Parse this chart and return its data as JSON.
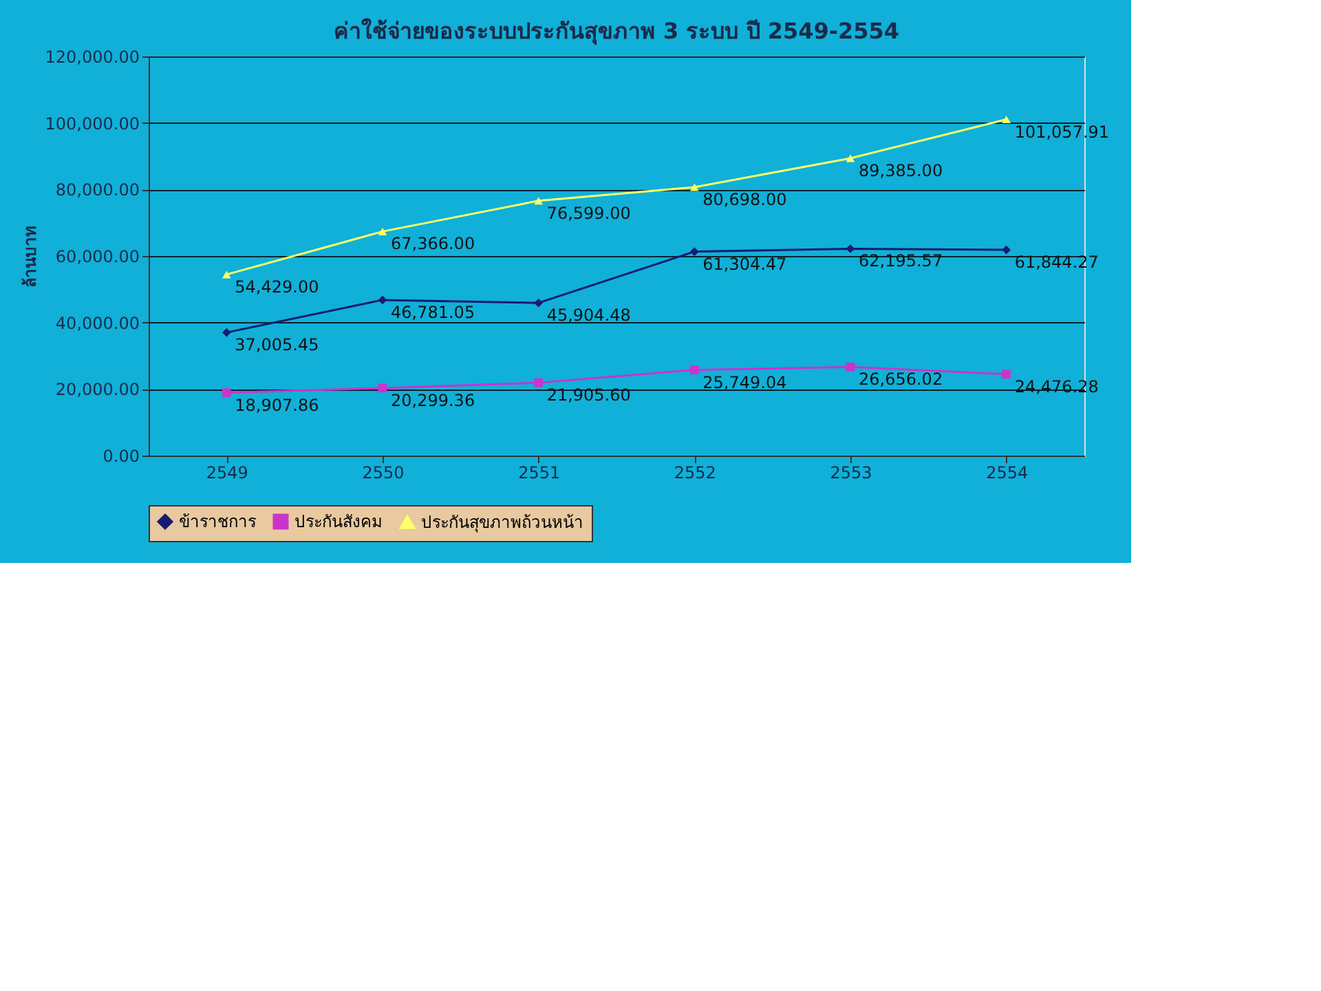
{
  "chart_data": {
    "type": "line",
    "title": "ค่าใช้จ่ายของระบบประกันสุขภาพ 3 ระบบ ปี 2549-2554",
    "ylabel": "ล้านบาท",
    "categories": [
      "2549",
      "2550",
      "2551",
      "2552",
      "2553",
      "2554"
    ],
    "series": [
      {
        "name": "ข้าราชการ",
        "color": "#1a1a6e",
        "marker": "diamond",
        "values": [
          37005.45,
          46781.05,
          45904.48,
          61304.47,
          62195.57,
          61844.27
        ],
        "value_labels": [
          "37,005.45",
          "46,781.05",
          "45,904.48",
          "61,304.47",
          "62,195.57",
          "61,844.27"
        ]
      },
      {
        "name": "ประกันสังคม",
        "color": "#cc33cc",
        "marker": "square",
        "values": [
          18907.86,
          20299.36,
          21905.6,
          25749.04,
          26656.02,
          24476.28
        ],
        "value_labels": [
          "18,907.86",
          "20,299.36",
          "21,905.60",
          "25,749.04",
          "26,656.02",
          "24,476.28"
        ]
      },
      {
        "name": "ประกันสุขภาพถ้วนหน้า",
        "color": "#ffff66",
        "marker": "triangle",
        "values": [
          54429.0,
          67366.0,
          76599.0,
          80698.0,
          89385.0,
          101057.91
        ],
        "value_labels": [
          "54,429.00",
          "67,366.00",
          "76,599.00",
          "80,698.00",
          "89,385.00",
          "101,057.91"
        ]
      }
    ],
    "ylim": [
      0,
      120000
    ],
    "yticks": [
      {
        "value": 0,
        "label": "0.00"
      },
      {
        "value": 20000,
        "label": "20,000.00"
      },
      {
        "value": 40000,
        "label": "40,000.00"
      },
      {
        "value": 60000,
        "label": "60,000.00"
      },
      {
        "value": 80000,
        "label": "80,000.00"
      },
      {
        "value": 100000,
        "label": "100,000.00"
      },
      {
        "value": 120000,
        "label": "120,000.00"
      }
    ],
    "grid": "y",
    "legend": "bottom",
    "line_style": "solid"
  }
}
